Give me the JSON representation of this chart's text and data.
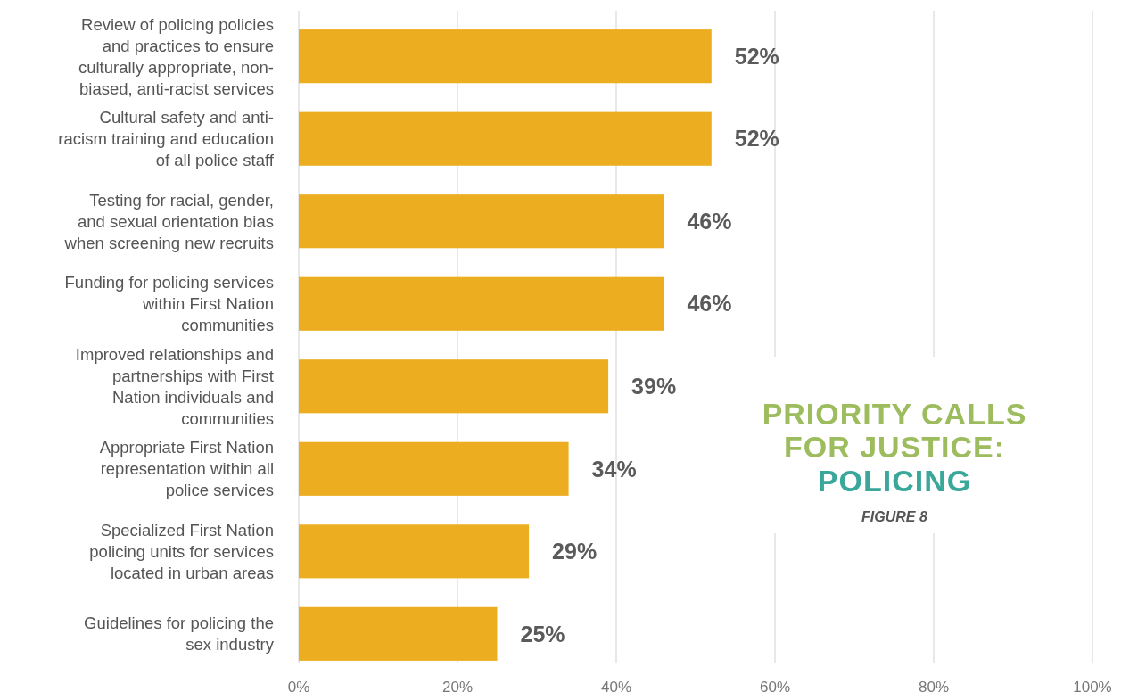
{
  "chart_data": {
    "type": "bar",
    "orientation": "horizontal",
    "title": "PRIORITY CALLS FOR JUSTICE:",
    "subtitle": "POLICING",
    "annotations": [
      "FIGURE 8"
    ],
    "categories": [
      "Review of policing policies and practices to ensure culturally appropriate, non-biased, anti-racist services",
      "Cultural safety and anti-racism training and education of all police staff",
      "Testing for racial, gender, and sexual orientation bias when screening new recruits",
      "Funding for policing services within First Nation communities",
      "Improved relationships and partnerships with First Nation individuals and communities",
      "Appropriate First Nation representation within all police services",
      "Specialized First Nation policing units for services located in urban areas",
      "Guidelines for policing the sex industry"
    ],
    "values": [
      52,
      52,
      46,
      46,
      39,
      34,
      29,
      25
    ],
    "value_labels": [
      "52%",
      "52%",
      "46%",
      "46%",
      "39%",
      "34%",
      "29%",
      "25%"
    ],
    "color": "#ecae20",
    "xlim": [
      0,
      100
    ],
    "xticks": [
      {
        "value": 0,
        "label": "0%"
      },
      {
        "value": 20,
        "label": "20%"
      },
      {
        "value": 40,
        "label": "40%"
      },
      {
        "value": 60,
        "label": "60%"
      },
      {
        "value": 80,
        "label": "80%"
      },
      {
        "value": 100,
        "label": "100%"
      }
    ],
    "grid": "x"
  }
}
